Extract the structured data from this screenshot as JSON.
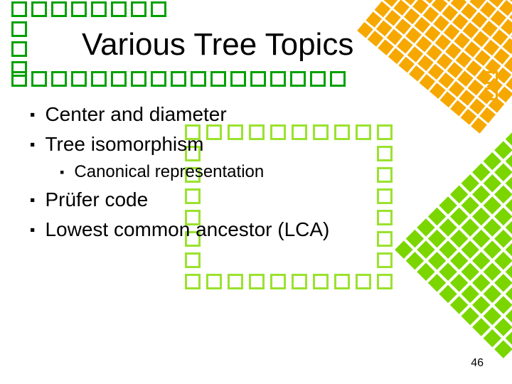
{
  "title": "Various Tree Topics",
  "bullets": {
    "b1": "Center and diameter",
    "b2": "Tree isomorphism",
    "b2a": "Canonical representation",
    "b3": "Prüfer code",
    "b4": "Lowest common ancestor (LCA)"
  },
  "page_number": "46",
  "decoration": {
    "green_border": "#00a000",
    "lime_border": "#9ae22e",
    "orange_fill": "#f6a800",
    "lime_fill": "#7bd600",
    "top_row_count": 8,
    "left_col_count": 3,
    "under_row_count": 17,
    "green_box_rows": 8,
    "green_box_cols": 10,
    "orange_solid_rows": 10,
    "orange_solid_cols": 12,
    "green_diamond_rows": 12,
    "green_diamond_cols": 10,
    "orange_outline_count": 2
  }
}
